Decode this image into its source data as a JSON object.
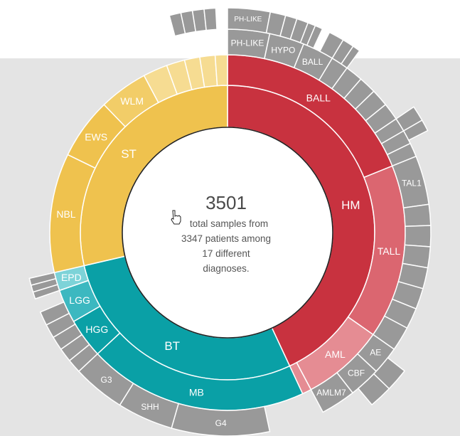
{
  "colors": {
    "HM": "#c8323f",
    "HM_light": "#db6670",
    "HM_lighter": "#e58c93",
    "BT": "#0aa0a6",
    "BT_light": "#3cb8c0",
    "BT_lighter": "#7dd3d8",
    "ST": "#efc24e",
    "ST_light": "#f2cd68",
    "ST_lighter": "#f6dc92",
    "grey": "#999999",
    "center_stroke": "#222222"
  },
  "center": {
    "total": "3501",
    "line1": "total samples from",
    "line2": "3347 patients among",
    "line3": "17 different",
    "line4": "diagnoses."
  },
  "chart_data": {
    "type": "sunburst",
    "inner_ring": [
      {
        "label": "HM",
        "start_deg": 0,
        "end_deg": 155
      },
      {
        "label": "BT",
        "start_deg": 155,
        "end_deg": 257
      },
      {
        "label": "ST",
        "start_deg": 257,
        "end_deg": 360
      }
    ],
    "diagnosis_ring": [
      {
        "label": "BALL",
        "group": "HM",
        "start_deg": 0,
        "end_deg": 68
      },
      {
        "label": "TALL",
        "group": "HM",
        "start_deg": 68,
        "end_deg": 125
      },
      {
        "label": "AML",
        "group": "HM",
        "start_deg": 125,
        "end_deg": 152
      },
      {
        "label": "",
        "group": "HM",
        "start_deg": 152,
        "end_deg": 155
      },
      {
        "label": "MB",
        "group": "BT",
        "start_deg": 155,
        "end_deg": 227
      },
      {
        "label": "HGG",
        "group": "BT",
        "start_deg": 227,
        "end_deg": 240
      },
      {
        "label": "LGG",
        "group": "BT",
        "start_deg": 240,
        "end_deg": 251
      },
      {
        "label": "EPD",
        "group": "BT",
        "start_deg": 251,
        "end_deg": 257
      },
      {
        "label": "NBL",
        "group": "ST",
        "start_deg": 257,
        "end_deg": 296
      },
      {
        "label": "EWS",
        "group": "ST",
        "start_deg": 296,
        "end_deg": 316
      },
      {
        "label": "WLM",
        "group": "ST",
        "start_deg": 316,
        "end_deg": 332
      },
      {
        "label": "",
        "group": "ST",
        "start_deg": 332,
        "end_deg": 340
      },
      {
        "label": "",
        "group": "ST",
        "start_deg": 340,
        "end_deg": 346
      },
      {
        "label": "",
        "group": "ST",
        "start_deg": 346,
        "end_deg": 351
      },
      {
        "label": "",
        "group": "ST",
        "start_deg": 351,
        "end_deg": 356
      },
      {
        "label": "",
        "group": "ST",
        "start_deg": 356,
        "end_deg": 360
      }
    ],
    "subtype_ring": [
      {
        "label": "PH-LIKE",
        "start_deg": 0,
        "end_deg": 12
      },
      {
        "label": "HYPO",
        "start_deg": 12,
        "end_deg": 22
      },
      {
        "label": "BALL",
        "start_deg": 22,
        "end_deg": 31
      },
      {
        "label": "",
        "start_deg": 31,
        "end_deg": 36
      },
      {
        "label": "",
        "start_deg": 36,
        "end_deg": 41
      },
      {
        "label": "",
        "start_deg": 41,
        "end_deg": 46
      },
      {
        "label": "",
        "start_deg": 46,
        "end_deg": 51
      },
      {
        "label": "",
        "start_deg": 51,
        "end_deg": 56
      },
      {
        "label": "",
        "start_deg": 56,
        "end_deg": 60
      },
      {
        "label": "",
        "start_deg": 60,
        "end_deg": 64
      },
      {
        "label": "",
        "start_deg": 64,
        "end_deg": 68
      },
      {
        "label": "TAL1",
        "start_deg": 68,
        "end_deg": 82
      },
      {
        "label": "",
        "start_deg": 82,
        "end_deg": 88
      },
      {
        "label": "",
        "start_deg": 88,
        "end_deg": 94
      },
      {
        "label": "",
        "start_deg": 94,
        "end_deg": 100
      },
      {
        "label": "",
        "start_deg": 100,
        "end_deg": 106
      },
      {
        "label": "",
        "start_deg": 106,
        "end_deg": 112
      },
      {
        "label": "",
        "start_deg": 112,
        "end_deg": 118
      },
      {
        "label": "",
        "start_deg": 118,
        "end_deg": 125
      },
      {
        "label": "AE",
        "start_deg": 125,
        "end_deg": 133
      },
      {
        "label": "CBF",
        "start_deg": 133,
        "end_deg": 142
      },
      {
        "label": "AMLM7",
        "start_deg": 142,
        "end_deg": 152
      },
      {
        "label": "G4",
        "start_deg": 168,
        "end_deg": 196
      },
      {
        "label": "SHH",
        "start_deg": 196,
        "end_deg": 212
      },
      {
        "label": "G3",
        "start_deg": 212,
        "end_deg": 227
      },
      {
        "label": "",
        "start_deg": 227,
        "end_deg": 231
      },
      {
        "label": "",
        "start_deg": 231,
        "end_deg": 235
      },
      {
        "label": "",
        "start_deg": 235,
        "end_deg": 239
      },
      {
        "label": "",
        "start_deg": 239,
        "end_deg": 243
      },
      {
        "label": "",
        "start_deg": 243,
        "end_deg": 247
      },
      {
        "label": "",
        "start_deg": 251,
        "end_deg": 253
      },
      {
        "label": "",
        "start_deg": 253,
        "end_deg": 255
      },
      {
        "label": "",
        "start_deg": 255,
        "end_deg": 257
      }
    ],
    "outer_ring": [
      {
        "label": "PH-LIKE",
        "start_deg": 0,
        "end_deg": 11
      },
      {
        "label": "",
        "start_deg": 11,
        "end_deg": 15
      },
      {
        "label": "",
        "start_deg": 15,
        "end_deg": 18
      },
      {
        "label": "",
        "start_deg": 18,
        "end_deg": 21
      },
      {
        "label": "",
        "start_deg": 21,
        "end_deg": 23
      },
      {
        "label": "",
        "start_deg": 23,
        "end_deg": 25
      },
      {
        "label": "",
        "start_deg": 27,
        "end_deg": 31
      },
      {
        "label": "",
        "start_deg": 31,
        "end_deg": 34
      },
      {
        "label": "",
        "start_deg": 34,
        "end_deg": 36
      },
      {
        "label": "",
        "start_deg": 56,
        "end_deg": 60
      },
      {
        "label": "",
        "start_deg": 60,
        "end_deg": 63
      },
      {
        "label": "",
        "start_deg": 128,
        "end_deg": 134
      },
      {
        "label": "",
        "start_deg": 134,
        "end_deg": 140
      },
      {
        "label": "",
        "start_deg": 345,
        "end_deg": 348
      },
      {
        "label": "",
        "start_deg": 348,
        "end_deg": 351
      },
      {
        "label": "",
        "start_deg": 351,
        "end_deg": 354
      },
      {
        "label": "",
        "start_deg": 354,
        "end_deg": 357
      }
    ]
  }
}
